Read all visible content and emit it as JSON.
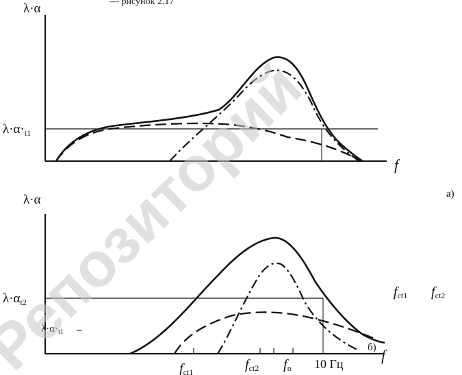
{
  "header_fragment": "— рисунок 2.17",
  "watermark": "Репозиторий",
  "top_chart": {
    "y_axis": "λ·α",
    "x_axis": "f",
    "level_label": "λ·α·",
    "level_sub": "t1",
    "panel_letter": "а)"
  },
  "bottom_chart": {
    "y_axis": "λ·α",
    "x_axis": "f",
    "level2_label": "λ·α",
    "level2_sub": "t2",
    "level1_label": "λ·α·",
    "level1_sub": "t1",
    "panel_letter": "б)",
    "ticks": [
      {
        "text": "f",
        "sub": "ct1"
      },
      {
        "text": "f",
        "sub": "ct2"
      },
      {
        "text": "f",
        "sub": "n"
      },
      {
        "text": "10 Гц",
        "sub": ""
      }
    ],
    "side_labels": [
      {
        "text": "f",
        "sub": "ct1"
      },
      {
        "text": "f",
        "sub": "ct2"
      }
    ]
  },
  "legend_styles": {
    "solid": "total",
    "dash": "component 1",
    "dashdot": "component 2"
  },
  "colors": {
    "ink": "#111111",
    "watermark": "#c8c8c8"
  }
}
